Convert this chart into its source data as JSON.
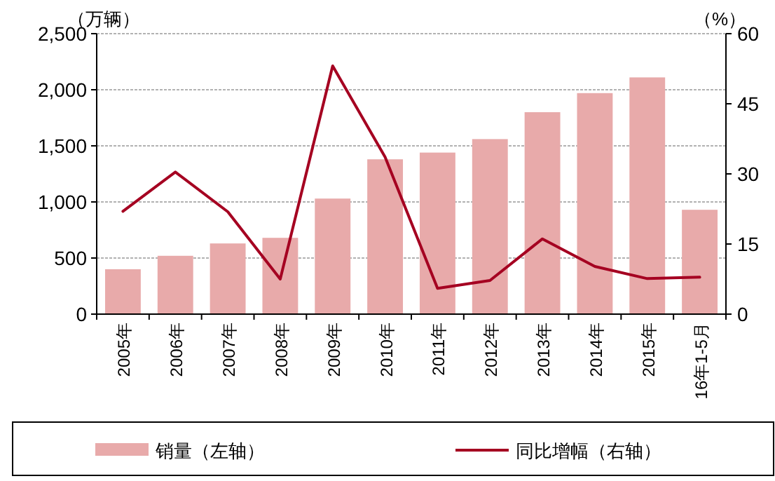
{
  "chart_data": {
    "type": "bar",
    "categories": [
      "2005年",
      "2006年",
      "2007年",
      "2008年",
      "2009年",
      "2010年",
      "2011年",
      "2012年",
      "2013年",
      "2014年",
      "2015年",
      "16年1-5月"
    ],
    "series": [
      {
        "name": "销量（左轴）",
        "color": "#e8aaaa",
        "values": [
          400,
          520,
          630,
          680,
          1030,
          1380,
          1440,
          1560,
          1800,
          1970,
          2110,
          930
        ]
      },
      {
        "name": "同比增幅（右轴）",
        "type": "line",
        "axis": "y2",
        "color": "#a50021",
        "values": [
          22.0,
          30.4,
          21.9,
          7.5,
          53.1,
          33.6,
          5.5,
          7.2,
          16.1,
          10.2,
          7.6,
          7.9
        ]
      }
    ],
    "ylabel": "（万辆）",
    "y2label": "（%）",
    "ylim": [
      0,
      2500
    ],
    "yticks": [
      0,
      500,
      {
        "value": 1000,
        "label": "1,000"
      },
      {
        "value": 1500,
        "label": "1,500"
      },
      {
        "value": 2000,
        "label": "2,000"
      },
      {
        "value": 2500,
        "label": "2,500"
      }
    ],
    "y2lim": [
      0,
      60
    ],
    "y2ticks": [
      0,
      15,
      30,
      45,
      60
    ],
    "grid": "y",
    "legend": "bottom"
  }
}
